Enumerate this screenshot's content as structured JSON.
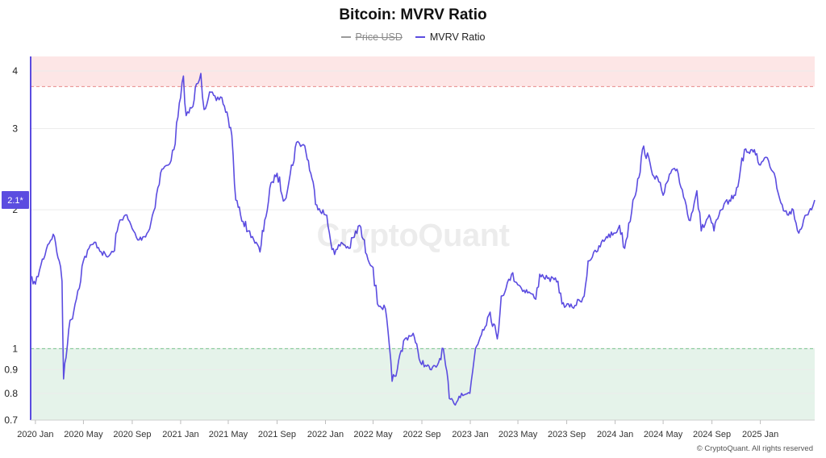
{
  "colors": {
    "series": "#5b4ce0",
    "price": "#9a9a9a",
    "overvalued_zone": "#fde6e6",
    "overvalued_line": "#e88a8a",
    "undervalued_zone": "#e5f3ea",
    "undervalued_line": "#78c48d",
    "badge_bg": "#5b4ce0",
    "badge_text": "#ffffff"
  },
  "watermark": "CryptoQuant",
  "copyright": "© CryptoQuant. All rights reserved",
  "chart_data": {
    "type": "line",
    "title": "Bitcoin: MVRV Ratio",
    "xlabel": "",
    "ylabel": "",
    "y_scale": "log",
    "ylim": [
      0.7,
      4.3
    ],
    "yticks": [
      0.7,
      0.8,
      0.9,
      1,
      2,
      3,
      4
    ],
    "xlim": [
      "2019-12-20",
      "2025-05-18"
    ],
    "xticks": [
      {
        "date": "2020-01-01",
        "label": "2020 Jan"
      },
      {
        "date": "2020-05-01",
        "label": "2020 May"
      },
      {
        "date": "2020-09-01",
        "label": "2020 Sep"
      },
      {
        "date": "2021-01-01",
        "label": "2021 Jan"
      },
      {
        "date": "2021-05-01",
        "label": "2021 May"
      },
      {
        "date": "2021-09-01",
        "label": "2021 Sep"
      },
      {
        "date": "2022-01-01",
        "label": "2022 Jan"
      },
      {
        "date": "2022-05-01",
        "label": "2022 May"
      },
      {
        "date": "2022-09-01",
        "label": "2022 Sep"
      },
      {
        "date": "2023-01-01",
        "label": "2023 Jan"
      },
      {
        "date": "2023-05-01",
        "label": "2023 May"
      },
      {
        "date": "2023-09-01",
        "label": "2023 Sep"
      },
      {
        "date": "2024-01-01",
        "label": "2024 Jan"
      },
      {
        "date": "2024-05-01",
        "label": "2024 May"
      },
      {
        "date": "2024-09-01",
        "label": "2024 Sep"
      },
      {
        "date": "2025-01-01",
        "label": "2025 Jan"
      }
    ],
    "legend": [
      {
        "name": "Price USD",
        "visible": false
      },
      {
        "name": "MVRV Ratio",
        "visible": true
      }
    ],
    "zones": [
      {
        "name": "overvalued",
        "from": 3.7,
        "to": 4.3
      },
      {
        "name": "undervalued",
        "from": 0.7,
        "to": 1.0
      }
    ],
    "last_value_badge": "2.1*",
    "last_value": 2.1,
    "series": [
      {
        "name": "MVRV Ratio",
        "points": [
          [
            "2019-12-20",
            1.42
          ],
          [
            "2020-01-01",
            1.38
          ],
          [
            "2020-01-15",
            1.52
          ],
          [
            "2020-02-01",
            1.68
          ],
          [
            "2020-02-15",
            1.77
          ],
          [
            "2020-03-01",
            1.55
          ],
          [
            "2020-03-08",
            1.4
          ],
          [
            "2020-03-12",
            0.86
          ],
          [
            "2020-03-15",
            0.93
          ],
          [
            "2020-03-25",
            1.1
          ],
          [
            "2020-04-10",
            1.25
          ],
          [
            "2020-05-01",
            1.55
          ],
          [
            "2020-05-15",
            1.65
          ],
          [
            "2020-06-01",
            1.7
          ],
          [
            "2020-06-15",
            1.62
          ],
          [
            "2020-07-01",
            1.58
          ],
          [
            "2020-07-15",
            1.62
          ],
          [
            "2020-08-01",
            1.9
          ],
          [
            "2020-08-15",
            1.95
          ],
          [
            "2020-09-01",
            1.82
          ],
          [
            "2020-09-15",
            1.72
          ],
          [
            "2020-10-01",
            1.75
          ],
          [
            "2020-10-15",
            1.82
          ],
          [
            "2020-11-01",
            2.15
          ],
          [
            "2020-11-15",
            2.45
          ],
          [
            "2020-12-01",
            2.5
          ],
          [
            "2020-12-15",
            2.7
          ],
          [
            "2021-01-01",
            3.5
          ],
          [
            "2021-01-08",
            3.9
          ],
          [
            "2021-01-15",
            3.2
          ],
          [
            "2021-02-01",
            3.35
          ],
          [
            "2021-02-10",
            3.75
          ],
          [
            "2021-02-21",
            3.95
          ],
          [
            "2021-03-01",
            3.3
          ],
          [
            "2021-03-15",
            3.6
          ],
          [
            "2021-04-01",
            3.45
          ],
          [
            "2021-04-15",
            3.5
          ],
          [
            "2021-05-01",
            3.15
          ],
          [
            "2021-05-10",
            2.9
          ],
          [
            "2021-05-20",
            2.1
          ],
          [
            "2021-06-01",
            1.95
          ],
          [
            "2021-06-20",
            1.8
          ],
          [
            "2021-07-01",
            1.75
          ],
          [
            "2021-07-20",
            1.62
          ],
          [
            "2021-08-01",
            1.9
          ],
          [
            "2021-08-20",
            2.3
          ],
          [
            "2021-09-01",
            2.4
          ],
          [
            "2021-09-20",
            2.1
          ],
          [
            "2021-10-01",
            2.3
          ],
          [
            "2021-10-20",
            2.8
          ],
          [
            "2021-11-10",
            2.75
          ],
          [
            "2021-11-25",
            2.4
          ],
          [
            "2021-12-10",
            2.05
          ],
          [
            "2022-01-01",
            1.95
          ],
          [
            "2022-01-24",
            1.6
          ],
          [
            "2022-02-10",
            1.7
          ],
          [
            "2022-03-01",
            1.65
          ],
          [
            "2022-03-28",
            1.85
          ],
          [
            "2022-04-15",
            1.6
          ],
          [
            "2022-05-01",
            1.5
          ],
          [
            "2022-05-12",
            1.25
          ],
          [
            "2022-06-01",
            1.22
          ],
          [
            "2022-06-18",
            0.85
          ],
          [
            "2022-07-01",
            0.9
          ],
          [
            "2022-07-20",
            1.05
          ],
          [
            "2022-08-10",
            1.08
          ],
          [
            "2022-08-25",
            0.95
          ],
          [
            "2022-09-10",
            0.92
          ],
          [
            "2022-09-25",
            0.9
          ],
          [
            "2022-10-10",
            0.92
          ],
          [
            "2022-10-25",
            1.0
          ],
          [
            "2022-11-09",
            0.78
          ],
          [
            "2022-11-21",
            0.76
          ],
          [
            "2022-12-10",
            0.8
          ],
          [
            "2022-12-31",
            0.8
          ],
          [
            "2023-01-14",
            1.0
          ],
          [
            "2023-02-01",
            1.1
          ],
          [
            "2023-02-20",
            1.2
          ],
          [
            "2023-03-10",
            1.05
          ],
          [
            "2023-03-20",
            1.3
          ],
          [
            "2023-04-01",
            1.35
          ],
          [
            "2023-04-15",
            1.45
          ],
          [
            "2023-05-10",
            1.35
          ],
          [
            "2023-06-01",
            1.32
          ],
          [
            "2023-06-15",
            1.28
          ],
          [
            "2023-06-25",
            1.45
          ],
          [
            "2023-07-15",
            1.42
          ],
          [
            "2023-08-10",
            1.4
          ],
          [
            "2023-08-20",
            1.25
          ],
          [
            "2023-09-15",
            1.23
          ],
          [
            "2023-10-15",
            1.3
          ],
          [
            "2023-10-25",
            1.55
          ],
          [
            "2023-11-15",
            1.62
          ],
          [
            "2023-12-10",
            1.75
          ],
          [
            "2024-01-01",
            1.78
          ],
          [
            "2024-01-12",
            1.85
          ],
          [
            "2024-01-25",
            1.65
          ],
          [
            "2024-02-15",
            2.1
          ],
          [
            "2024-03-01",
            2.35
          ],
          [
            "2024-03-13",
            2.75
          ],
          [
            "2024-04-01",
            2.45
          ],
          [
            "2024-04-20",
            2.3
          ],
          [
            "2024-05-01",
            2.15
          ],
          [
            "2024-05-20",
            2.4
          ],
          [
            "2024-06-05",
            2.45
          ],
          [
            "2024-06-25",
            2.1
          ],
          [
            "2024-07-05",
            1.9
          ],
          [
            "2024-07-25",
            2.2
          ],
          [
            "2024-08-05",
            1.8
          ],
          [
            "2024-08-25",
            1.95
          ],
          [
            "2024-09-06",
            1.8
          ],
          [
            "2024-09-25",
            2.0
          ],
          [
            "2024-10-15",
            2.1
          ],
          [
            "2024-10-30",
            2.15
          ],
          [
            "2024-11-12",
            2.45
          ],
          [
            "2024-11-22",
            2.7
          ],
          [
            "2024-12-05",
            2.65
          ],
          [
            "2024-12-17",
            2.7
          ],
          [
            "2025-01-01",
            2.5
          ],
          [
            "2025-01-15",
            2.6
          ],
          [
            "2025-01-22",
            2.55
          ],
          [
            "2025-02-05",
            2.4
          ],
          [
            "2025-02-25",
            2.05
          ],
          [
            "2025-03-10",
            1.95
          ],
          [
            "2025-03-25",
            2.0
          ],
          [
            "2025-04-08",
            1.78
          ],
          [
            "2025-04-20",
            1.9
          ],
          [
            "2025-05-01",
            1.95
          ],
          [
            "2025-05-10",
            2.0
          ],
          [
            "2025-05-18",
            2.1
          ]
        ]
      }
    ]
  }
}
